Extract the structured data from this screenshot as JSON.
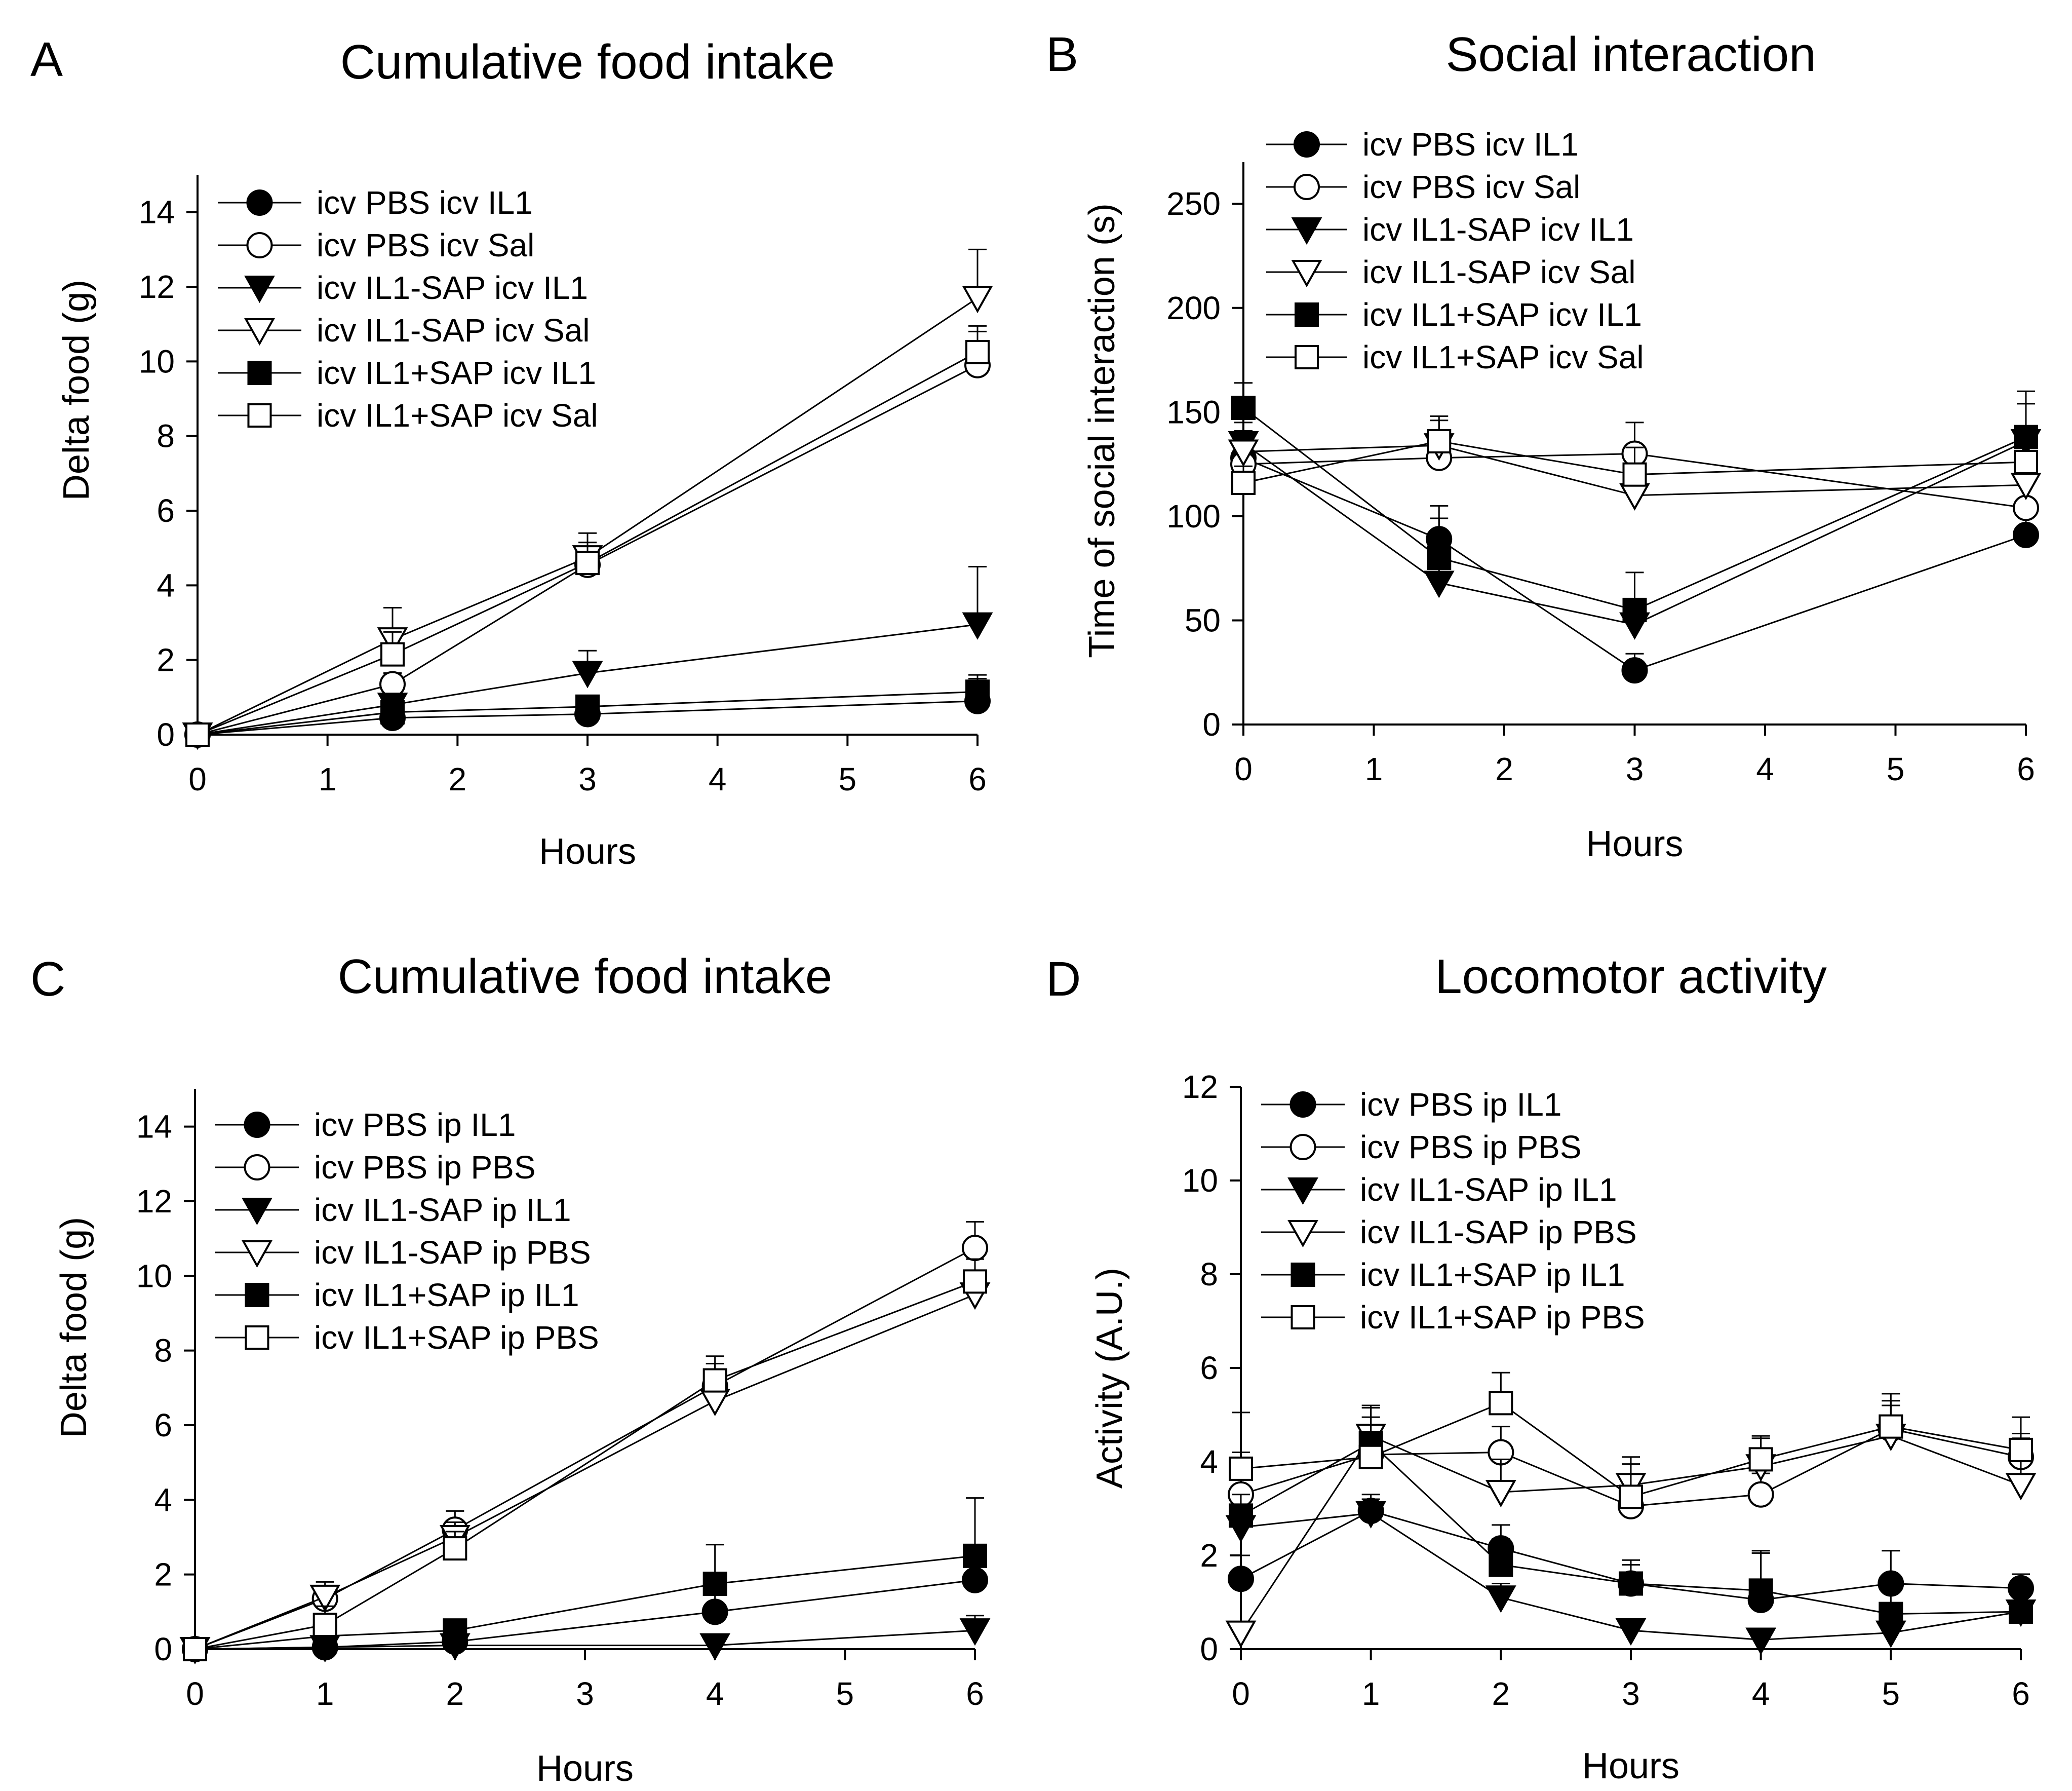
{
  "figure": "Four-panel line chart figure",
  "chart_data": [
    {
      "panel": "A",
      "type": "line",
      "title": "Cumulative food intake",
      "xlabel": "Hours",
      "ylabel": "Delta food (g)",
      "xlim": [
        0,
        6
      ],
      "ylim": [
        0,
        15
      ],
      "xticks": [
        0,
        1,
        2,
        3,
        4,
        5,
        6
      ],
      "yticks": [
        0,
        2,
        4,
        6,
        8,
        10,
        12,
        14
      ],
      "x": [
        0,
        1.5,
        3,
        6
      ],
      "series": [
        {
          "name": "icv PBS icv IL1",
          "marker": "circle",
          "fill": "filled",
          "values": [
            0,
            0.45,
            0.55,
            0.9
          ],
          "err": [
            0,
            0.15,
            0.2,
            0.6
          ]
        },
        {
          "name": "icv PBS icv Sal",
          "marker": "circle",
          "fill": "open",
          "values": [
            0,
            1.35,
            4.55,
            9.9
          ],
          "err": [
            0,
            0.3,
            0.6,
            0.9
          ]
        },
        {
          "name": "icv IL1-SAP icv IL1",
          "marker": "triangle-down",
          "fill": "filled",
          "values": [
            0,
            0.8,
            1.65,
            2.95
          ],
          "err": [
            0,
            0.3,
            0.6,
            1.55
          ]
        },
        {
          "name": "icv IL1-SAP icv Sal",
          "marker": "triangle-down",
          "fill": "open",
          "values": [
            0,
            2.55,
            4.75,
            11.7
          ],
          "err": [
            0,
            0.85,
            0.65,
            1.3
          ]
        },
        {
          "name": "icv IL1+SAP icv IL1",
          "marker": "square",
          "fill": "filled",
          "values": [
            0,
            0.6,
            0.75,
            1.15
          ],
          "err": [
            0,
            0.25,
            0.3,
            0.45
          ]
        },
        {
          "name": "icv IL1+SAP icv Sal",
          "marker": "square",
          "fill": "open",
          "values": [
            0,
            2.15,
            4.6,
            10.25
          ],
          "err": [
            0,
            0.6,
            0.55,
            0.7
          ]
        }
      ]
    },
    {
      "panel": "B",
      "type": "line",
      "title": "Social interaction",
      "xlabel": "Hours",
      "ylabel": "Time of social interaction (s)",
      "xlim": [
        0,
        6
      ],
      "ylim": [
        0,
        270
      ],
      "xticks": [
        0,
        1,
        2,
        3,
        4,
        5,
        6
      ],
      "yticks": [
        0,
        50,
        100,
        150,
        200,
        250
      ],
      "x": [
        0,
        1.5,
        3,
        6
      ],
      "series": [
        {
          "name": "icv PBS icv IL1",
          "marker": "circle",
          "fill": "filled",
          "values": [
            128,
            89,
            26,
            91
          ],
          "err": [
            8,
            10,
            8,
            25
          ]
        },
        {
          "name": "icv PBS icv Sal",
          "marker": "circle",
          "fill": "open",
          "values": [
            125,
            128,
            130,
            104
          ],
          "err": [
            8,
            10,
            15,
            12
          ]
        },
        {
          "name": "icv IL1-SAP icv IL1",
          "marker": "triangle-down",
          "fill": "filled",
          "values": [
            135,
            68,
            48,
            136
          ],
          "err": [
            10,
            24,
            12,
            18
          ]
        },
        {
          "name": "icv IL1-SAP icv Sal",
          "marker": "triangle-down",
          "fill": "open",
          "values": [
            131,
            134,
            110,
            115
          ],
          "err": [
            10,
            12,
            23,
            14
          ]
        },
        {
          "name": "icv IL1+SAP icv IL1",
          "marker": "square",
          "fill": "filled",
          "values": [
            152,
            80,
            55,
            138
          ],
          "err": [
            12,
            25,
            18,
            22
          ]
        },
        {
          "name": "icv IL1+SAP icv Sal",
          "marker": "square",
          "fill": "open",
          "values": [
            116,
            136,
            120,
            126
          ],
          "err": [
            8,
            12,
            13,
            15
          ]
        }
      ]
    },
    {
      "panel": "C",
      "type": "line",
      "title": "Cumulative food intake",
      "xlabel": "Hours",
      "ylabel": "Delta food (g)",
      "xlim": [
        0,
        6
      ],
      "ylim": [
        0,
        15
      ],
      "xticks": [
        0,
        1,
        2,
        3,
        4,
        5,
        6
      ],
      "yticks": [
        0,
        2,
        4,
        6,
        8,
        10,
        12,
        14
      ],
      "x": [
        0,
        1,
        2,
        4,
        6
      ],
      "series": [
        {
          "name": "icv PBS ip IL1",
          "marker": "circle",
          "fill": "filled",
          "values": [
            0,
            0.05,
            0.2,
            1.0,
            1.85
          ],
          "err": [
            0,
            0.05,
            0.2,
            0.6,
            0.7
          ]
        },
        {
          "name": "icv PBS ip PBS",
          "marker": "circle",
          "fill": "open",
          "values": [
            0,
            1.35,
            3.2,
            7.05,
            10.75
          ],
          "err": [
            0,
            0.25,
            0.5,
            0.6,
            0.7
          ]
        },
        {
          "name": "icv IL1-SAP ip IL1",
          "marker": "triangle-down",
          "fill": "filled",
          "values": [
            0,
            0.05,
            0.1,
            0.1,
            0.5
          ],
          "err": [
            0,
            0.05,
            0.05,
            0.1,
            0.4
          ]
        },
        {
          "name": "icv IL1-SAP ip PBS",
          "marker": "triangle-down",
          "fill": "open",
          "values": [
            0,
            1.4,
            3.0,
            6.65,
            9.5
          ],
          "err": [
            0,
            0.4,
            0.4,
            0.45,
            0.5
          ]
        },
        {
          "name": "icv IL1+SAP ip IL1",
          "marker": "square",
          "fill": "filled",
          "values": [
            0,
            0.35,
            0.5,
            1.75,
            2.5
          ],
          "err": [
            0,
            0.2,
            0.3,
            1.05,
            1.55
          ]
        },
        {
          "name": "icv IL1+SAP ip PBS",
          "marker": "square",
          "fill": "open",
          "values": [
            0,
            0.65,
            2.7,
            7.2,
            9.85
          ],
          "err": [
            0,
            0.5,
            0.45,
            0.65,
            0.6
          ]
        }
      ]
    },
    {
      "panel": "D",
      "type": "line",
      "title": "Locomotor activity",
      "xlabel": "Hours",
      "ylabel": "Activity (A.U.)",
      "xlim": [
        0,
        6
      ],
      "ylim": [
        0,
        12
      ],
      "xticks": [
        0,
        1,
        2,
        3,
        4,
        5,
        6
      ],
      "yticks": [
        0,
        2,
        4,
        6,
        8,
        10,
        12
      ],
      "x": [
        0,
        1,
        2,
        3,
        4,
        5,
        6
      ],
      "series": [
        {
          "name": "icv PBS ip IL1",
          "marker": "circle",
          "fill": "filled",
          "values": [
            1.5,
            2.95,
            2.15,
            1.4,
            1.05,
            1.4,
            1.3
          ],
          "err": [
            0.5,
            0.35,
            0.5,
            0.4,
            1.0,
            0.7,
            0.3
          ]
        },
        {
          "name": "icv PBS ip PBS",
          "marker": "circle",
          "fill": "open",
          "values": [
            3.3,
            4.15,
            4.2,
            3.05,
            3.3,
            4.7,
            4.1
          ],
          "err": [
            0.9,
            0.6,
            0.55,
            0.5,
            0.45,
            0.6,
            0.5
          ]
        },
        {
          "name": "icv IL1-SAP ip IL1",
          "marker": "triangle-down",
          "fill": "filled",
          "values": [
            2.6,
            2.9,
            1.1,
            0.4,
            0.2,
            0.35,
            0.8
          ],
          "err": [
            0.4,
            0.3,
            0.3,
            0.15,
            0.1,
            0.2,
            0.5
          ]
        },
        {
          "name": "icv IL1-SAP ip PBS",
          "marker": "triangle-down",
          "fill": "open",
          "values": [
            0.35,
            4.55,
            3.35,
            3.5,
            3.9,
            4.55,
            3.5
          ],
          "err": [
            0.2,
            0.6,
            0.7,
            0.6,
            0.6,
            0.65,
            1.0
          ]
        },
        {
          "name": "icv IL1+SAP ip IL1",
          "marker": "square",
          "fill": "filled",
          "values": [
            2.85,
            4.4,
            1.8,
            1.4,
            1.25,
            0.75,
            0.8
          ],
          "err": [
            0.45,
            0.8,
            0.55,
            0.5,
            0.85,
            0.55,
            0.5
          ]
        },
        {
          "name": "icv IL1+SAP ip PBS",
          "marker": "square",
          "fill": "open",
          "values": [
            3.85,
            4.1,
            5.25,
            3.25,
            4.05,
            4.75,
            4.25
          ],
          "err": [
            1.2,
            0.85,
            0.65,
            0.7,
            0.5,
            0.7,
            0.7
          ]
        }
      ]
    }
  ]
}
